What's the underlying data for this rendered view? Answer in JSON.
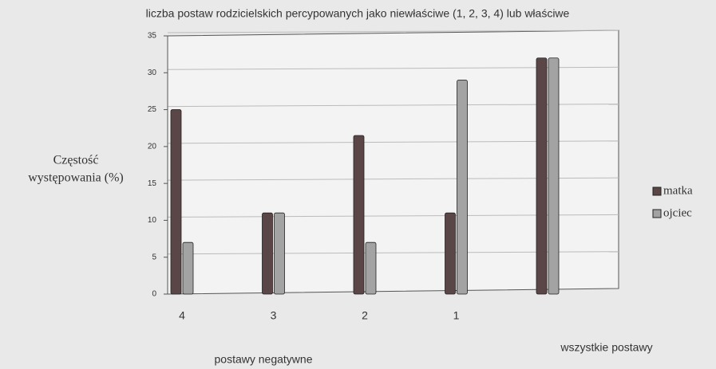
{
  "chart_data": {
    "type": "bar",
    "title": "liczba postaw rodzicielskich percypowanych jako niewłaściwe (1, 2, 3, 4) lub właściwe",
    "y_label": [
      "Częstość",
      "występowania (%)"
    ],
    "categories": [
      "4",
      "3",
      "2",
      "1",
      null
    ],
    "series": [
      {
        "name": "matka",
        "color": "#5a4646",
        "values": [
          25,
          11,
          21.5,
          11,
          32
        ]
      },
      {
        "name": "ojciec",
        "color": "#a3a3a3",
        "values": [
          7,
          11,
          7,
          29,
          32
        ]
      }
    ],
    "annotations": [
      "postawy negatywne",
      "wszystkie postawy"
    ],
    "ylim": [
      0,
      35
    ],
    "yticks": [
      0,
      5,
      10,
      15,
      20,
      25,
      30,
      35
    ],
    "grid": true,
    "legend": "right"
  }
}
